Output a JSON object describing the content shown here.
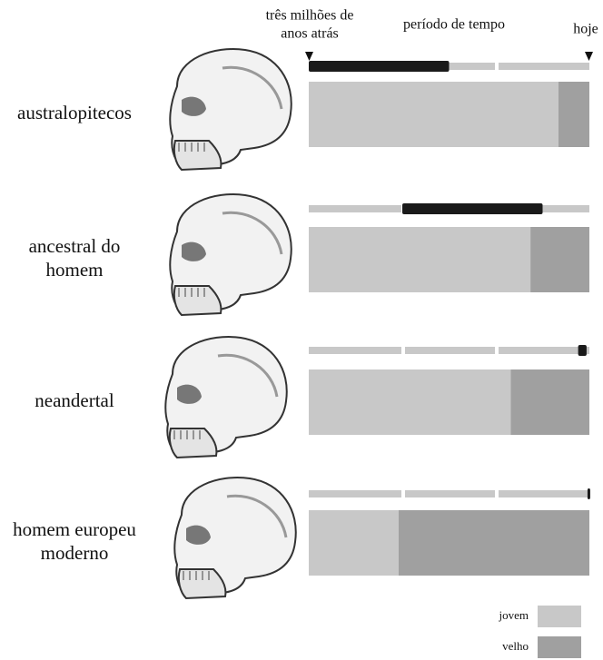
{
  "chart_data": {
    "type": "timeline-bar",
    "start_label": [
      "três milhões de",
      "anos atrás"
    ],
    "period_label": "período de tempo",
    "end_label": "hoje",
    "xlim": [
      3,
      0
    ],
    "timeline_color": "#c8c8c8",
    "lived_color": "#1a1a1a",
    "series": [
      {
        "name": "jovem",
        "color": "#c8c8c8"
      },
      {
        "name": "velho",
        "color": "#a0a0a0"
      }
    ],
    "rows": [
      {
        "name": [
          "australopitecos"
        ],
        "lived": [
          3,
          1.5
        ],
        "values": [
          89,
          11
        ]
      },
      {
        "name": [
          "ancestral do",
          "homem"
        ],
        "lived": [
          2,
          0.5
        ],
        "values": [
          79,
          21
        ]
      },
      {
        "name": [
          "neandertal"
        ],
        "lived": [
          0.12,
          0.03
        ],
        "values": [
          72,
          28
        ]
      },
      {
        "name": [
          "homem europeu",
          "moderno"
        ],
        "lived": [
          0.02,
          0
        ],
        "values": [
          32,
          68
        ]
      }
    ]
  }
}
